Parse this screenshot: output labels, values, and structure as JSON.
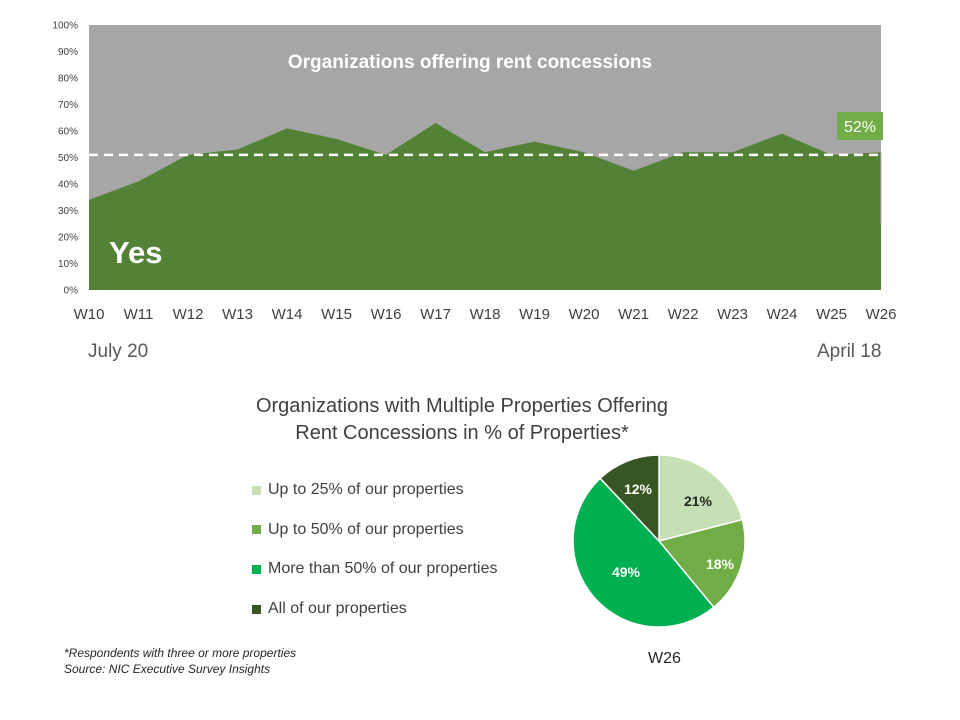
{
  "chart_data": [
    {
      "type": "area",
      "title": "Organizations offering rent concessions",
      "series_label": "Yes",
      "categories": [
        "W10",
        "W11",
        "W12",
        "W13",
        "W14",
        "W15",
        "W16",
        "W17",
        "W18",
        "W19",
        "W20",
        "W21",
        "W22",
        "W23",
        "W24",
        "W25",
        "W26"
      ],
      "values": [
        34,
        41,
        51,
        53,
        61,
        57,
        51,
        63,
        52,
        56,
        52,
        45,
        52,
        52,
        59,
        51,
        52
      ],
      "ylim": [
        0,
        100
      ],
      "yticks": [
        "0%",
        "10%",
        "20%",
        "30%",
        "40%",
        "50%",
        "60%",
        "70%",
        "80%",
        "90%",
        "100%"
      ],
      "reference_line": 51,
      "callout": "52%",
      "range_start": "July 20",
      "range_end": "April 18",
      "colors": {
        "yes": "#538135",
        "background": "#a6a6a6",
        "callout": "#70ad47",
        "arrow": "#70ad47"
      }
    },
    {
      "type": "pie",
      "title_lines": [
        "Organizations with Multiple Properties Offering",
        "Rent Concessions in  % of Properties*"
      ],
      "caption": "W26",
      "slices": [
        {
          "label": "Up to 25% of our properties",
          "value": 21,
          "text": "21%",
          "color": "#c5e0b4",
          "text_color": "#262626"
        },
        {
          "label": "Up to 50% of our properties",
          "value": 18,
          "text": "18%",
          "color": "#70ad47",
          "text_color": "#ffffff"
        },
        {
          "label": "More than 50% of our properties",
          "value": 49,
          "text": "49%",
          "color": "#00b050",
          "text_color": "#ffffff"
        },
        {
          "label": "All of our properties",
          "value": 12,
          "text": "12%",
          "color": "#375623",
          "text_color": "#ffffff"
        }
      ]
    }
  ],
  "footnote": {
    "line1": "*Respondents with three or more properties",
    "line2": "Source: NIC Executive Survey Insights"
  }
}
